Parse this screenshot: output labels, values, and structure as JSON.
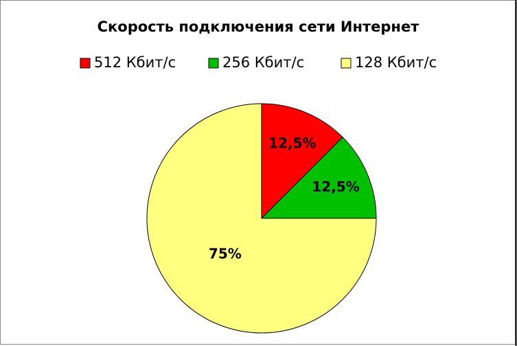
{
  "chart_data": {
    "type": "pie",
    "title": "Скорость подключения сети Интернет",
    "categories": [
      "512 Кбит/с",
      "256 Кбит/с",
      "128 Кбит/с"
    ],
    "values": [
      12.5,
      12.5,
      75
    ],
    "value_labels": [
      "12,5%",
      "12,5%",
      "75%"
    ],
    "colors": [
      "#ff0000",
      "#00c000",
      "#ffff80"
    ],
    "legend": "top"
  }
}
